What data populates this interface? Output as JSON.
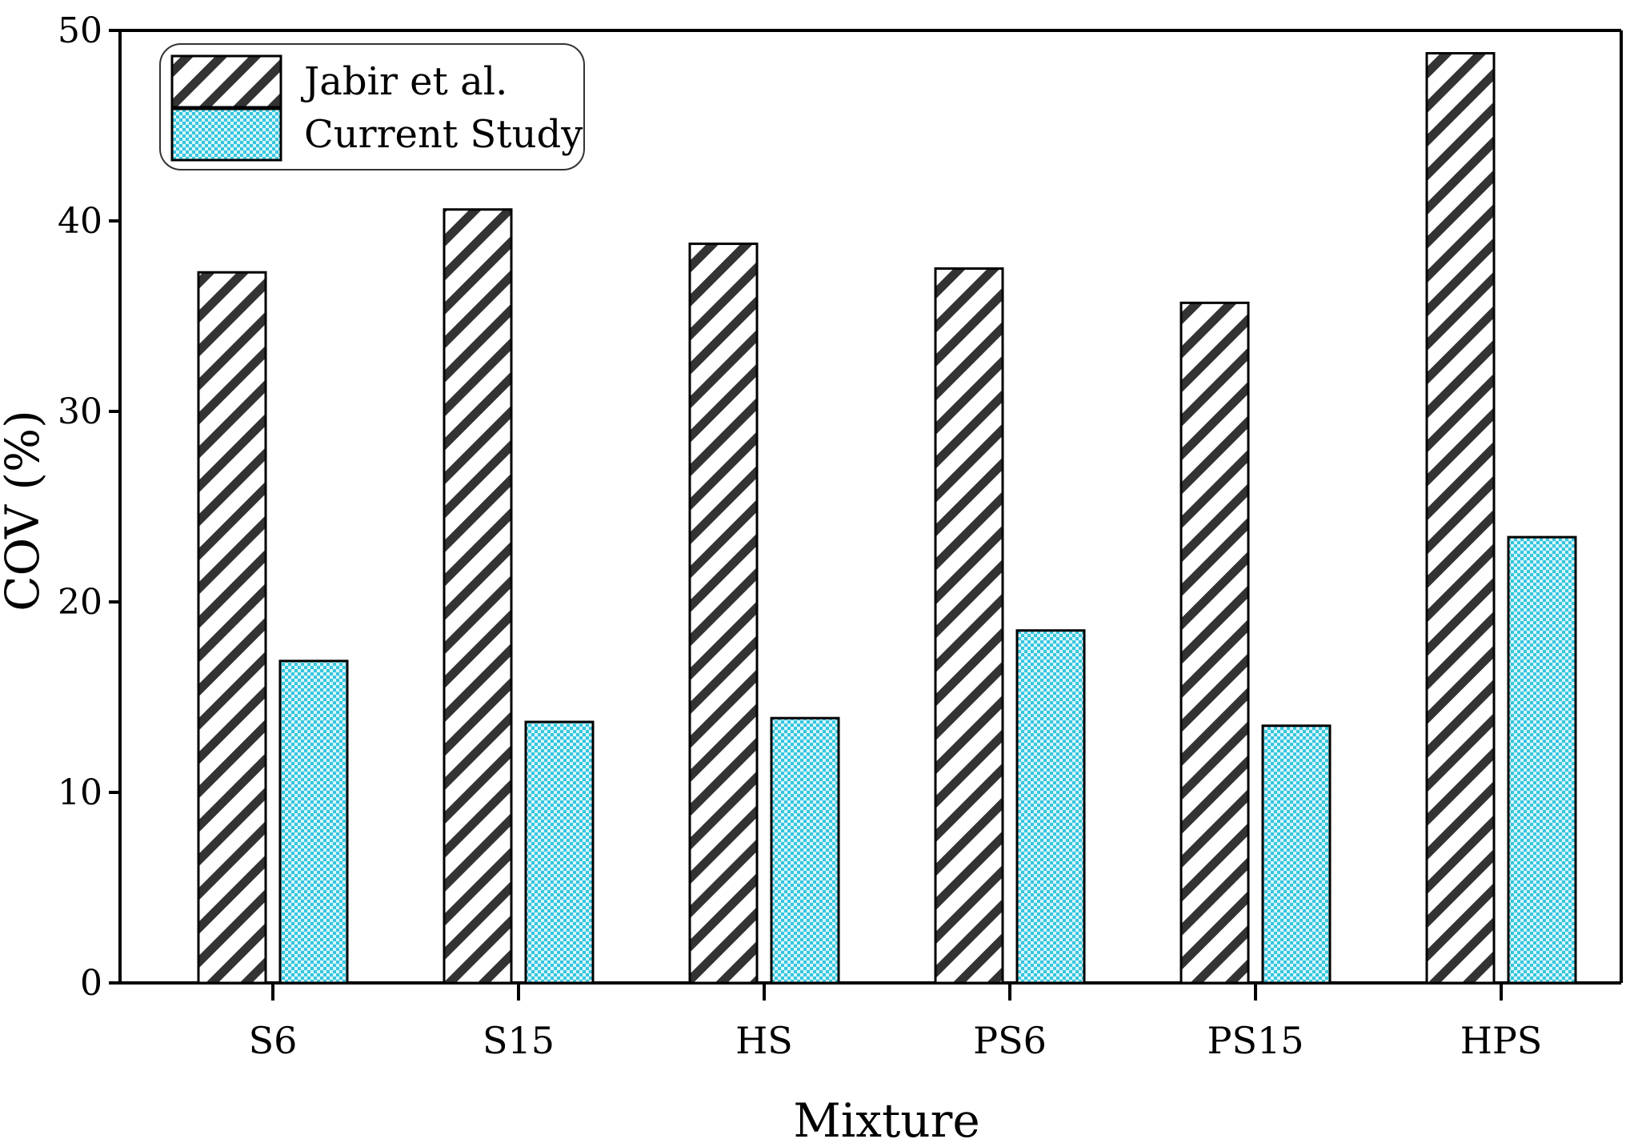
{
  "chart_data": {
    "type": "bar",
    "title": "",
    "xlabel": "Mixture",
    "ylabel": "COV (%)",
    "ylim": [
      0,
      50
    ],
    "yticks": [
      0,
      10,
      20,
      30,
      40,
      50
    ],
    "grid": false,
    "legend_position": "top-left",
    "categories": [
      "S6",
      "S15",
      "HS",
      "PS6",
      "PS15",
      "HPS"
    ],
    "series": [
      {
        "name": "Jabir et al.",
        "values": [
          37.3,
          40.6,
          38.8,
          37.5,
          35.7,
          48.8
        ],
        "pattern": "diagonal-hatch",
        "color": "#333333"
      },
      {
        "name": "Current Study",
        "values": [
          16.9,
          13.7,
          13.9,
          18.5,
          13.5,
          23.4
        ],
        "pattern": "checker",
        "color": "#35c6de"
      }
    ]
  }
}
